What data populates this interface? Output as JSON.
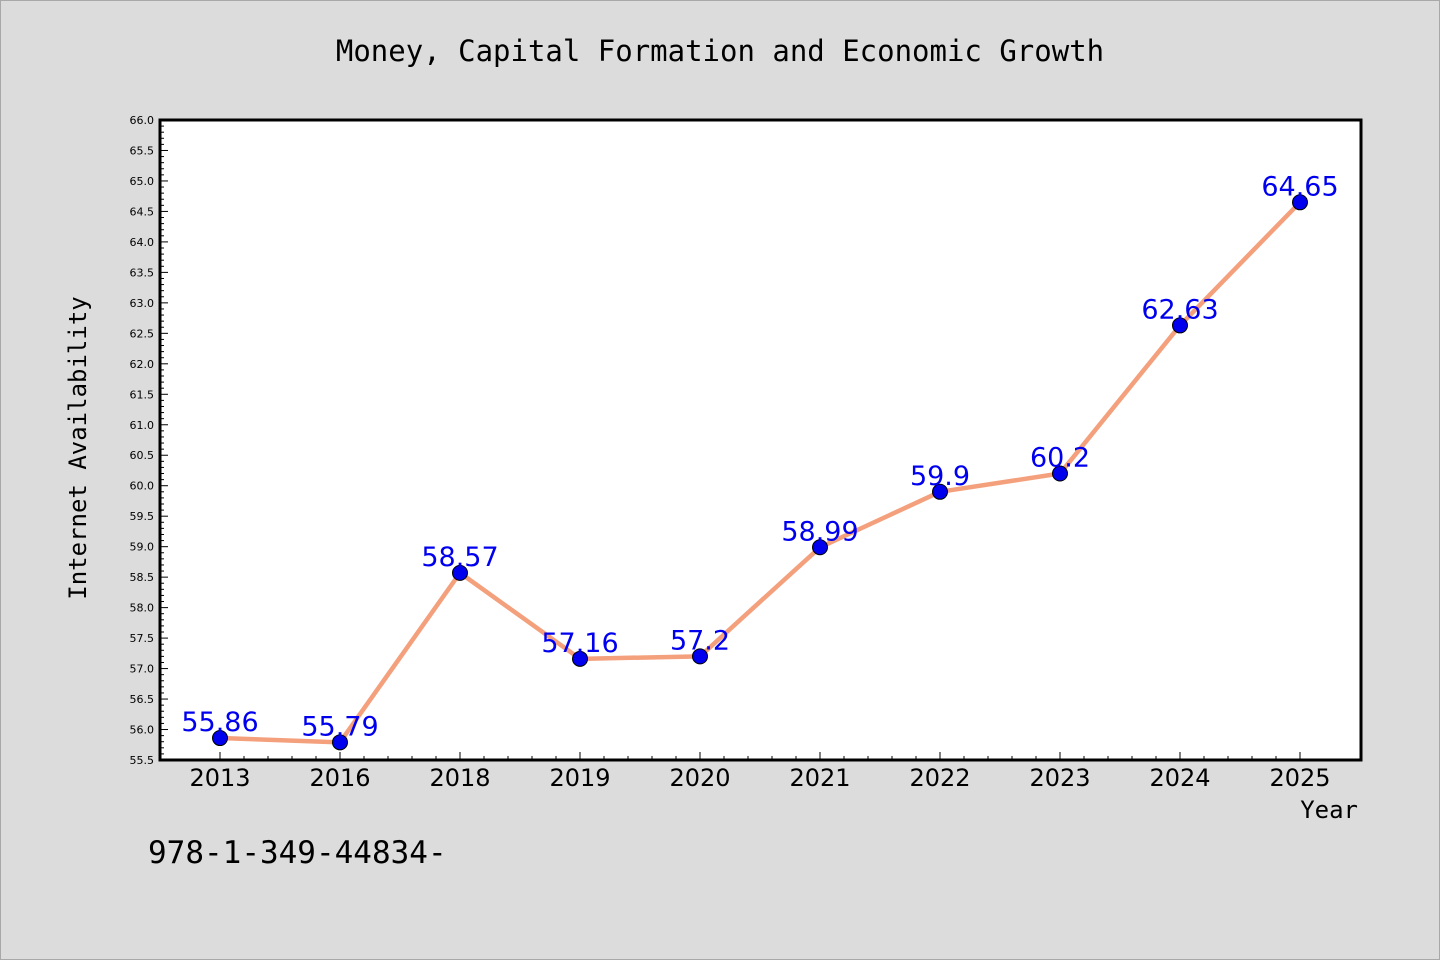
{
  "chart_data": {
    "type": "line",
    "title": "Money, Capital Formation and Economic Growth",
    "xlabel": "Year",
    "ylabel": "Internet Availability",
    "categories": [
      "2013",
      "2016",
      "2018",
      "2019",
      "2020",
      "2021",
      "2022",
      "2023",
      "2024",
      "2025"
    ],
    "series": [
      {
        "values": [
          55.86,
          55.79,
          58.57,
          57.16,
          57.2,
          58.99,
          59.9,
          60.2,
          62.63,
          64.65
        ],
        "labels": [
          "55.86",
          "55.79",
          "58.57",
          "57.16",
          "57.2",
          "58.99",
          "59.9",
          "60.2",
          "62.63",
          "64.65"
        ]
      }
    ],
    "ylim": [
      55.5,
      66.0
    ],
    "yticks": [
      "55.5",
      "56.0",
      "56.5",
      "57.0",
      "57.5",
      "58.0",
      "58.5",
      "59.0",
      "59.5",
      "60.0",
      "60.5",
      "61.0",
      "61.5",
      "62.0",
      "62.5",
      "63.0",
      "63.5",
      "64.0",
      "64.5",
      "65.0",
      "65.5",
      "66.0"
    ],
    "grid": false,
    "legend": "none",
    "colors": {
      "line": "#f4a07c",
      "marker": "#0000ee",
      "label": "#0000ee"
    }
  },
  "footnote": "978-1-349-44834-"
}
